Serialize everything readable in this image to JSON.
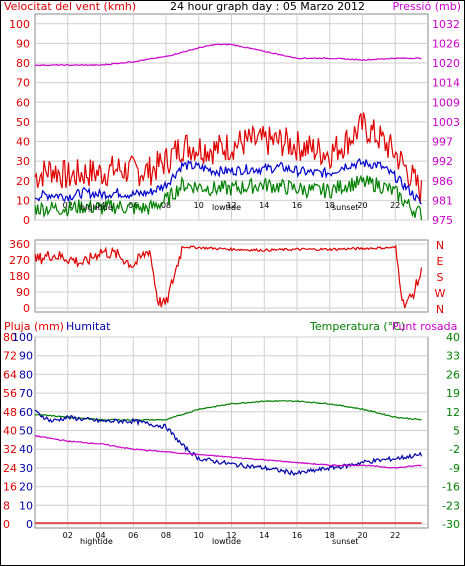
{
  "chart_data": [
    {
      "type": "line",
      "title": "24 hour graph day : 05 Marzo 2012",
      "left_axis_label": "Velocitat del vent (kmh)",
      "right_axis_label": "Pressió (mb)",
      "left_ticks": [
        "0",
        "10",
        "20",
        "30",
        "40",
        "50",
        "60",
        "70",
        "80",
        "90",
        "100"
      ],
      "right_ticks": [
        "975",
        "981",
        "986",
        "992",
        "997",
        "1003",
        "1009",
        "1014",
        "1020",
        "1026",
        "1032"
      ],
      "x_ticks": [
        "02",
        "04",
        "06",
        "08",
        "10",
        "12",
        "14",
        "16",
        "18",
        "20",
        "22"
      ],
      "x_markers": [
        "hightide",
        "lowtide",
        "sunset"
      ],
      "ylim": [
        0,
        105
      ],
      "xlim": [
        0,
        24
      ],
      "grid": true,
      "series": [
        {
          "key": "gust",
          "color": "#e00000",
          "x": [
            0,
            1,
            2,
            3,
            4,
            5,
            6,
            7,
            8,
            9,
            10,
            11,
            12,
            13,
            14,
            15,
            16,
            17,
            18,
            19,
            20,
            21,
            22,
            23,
            23.6
          ],
          "values": [
            22,
            26,
            22,
            24,
            24,
            26,
            25,
            25,
            30,
            38,
            37,
            36,
            38,
            40,
            40,
            40,
            38,
            36,
            34,
            40,
            48,
            42,
            34,
            22,
            14
          ]
        },
        {
          "key": "wind",
          "color": "#0000cc",
          "x": [
            0,
            1,
            2,
            3,
            4,
            5,
            6,
            7,
            8,
            9,
            10,
            11,
            12,
            13,
            14,
            15,
            16,
            17,
            18,
            19,
            20,
            21,
            22,
            23,
            23.6
          ],
          "values": [
            12,
            13,
            12,
            14,
            13,
            14,
            13,
            14,
            18,
            28,
            27,
            25,
            25,
            26,
            26,
            27,
            25,
            24,
            24,
            28,
            29,
            28,
            22,
            14,
            8
          ]
        },
        {
          "key": "wind_min",
          "color": "#008000",
          "x": [
            0,
            1,
            2,
            3,
            4,
            5,
            6,
            7,
            8,
            9,
            10,
            11,
            12,
            13,
            14,
            15,
            16,
            17,
            18,
            19,
            20,
            21,
            22,
            23,
            23.6
          ],
          "values": [
            6,
            6,
            6,
            7,
            6,
            7,
            6,
            6,
            10,
            18,
            17,
            16,
            16,
            17,
            18,
            17,
            16,
            15,
            15,
            18,
            19,
            18,
            14,
            6,
            3
          ]
        },
        {
          "key": "pressure",
          "color": "#cc00cc",
          "unit": "mb",
          "x": [
            0,
            2,
            4,
            6,
            8,
            10,
            11,
            12,
            14,
            16,
            18,
            20,
            22,
            23,
            23.6
          ],
          "values": [
            1020,
            1020,
            1020,
            1021,
            1022.5,
            1025,
            1026,
            1026,
            1024,
            1022,
            1022,
            1021.5,
            1022,
            1022,
            1022
          ]
        }
      ]
    },
    {
      "type": "line",
      "title": "",
      "left_ticks": [
        "0",
        "90",
        "180",
        "270",
        "360"
      ],
      "compass": [
        "N",
        "W",
        "S",
        "E",
        "N"
      ],
      "ylim": [
        0,
        360
      ],
      "xlim": [
        0,
        24
      ],
      "series": [
        {
          "key": "direction",
          "color": "#e00000",
          "x": [
            0,
            1,
            2,
            3,
            4,
            5,
            6,
            7,
            7.5,
            8,
            9,
            10,
            12,
            14,
            16,
            18,
            20,
            22,
            22.5,
            23,
            23.6
          ],
          "values": [
            270,
            300,
            280,
            250,
            320,
            300,
            240,
            330,
            40,
            20,
            345,
            340,
            330,
            325,
            330,
            330,
            335,
            340,
            20,
            60,
            200
          ]
        }
      ]
    },
    {
      "type": "line",
      "left_axis_label": "Pluja (mm)",
      "humidity_label": "Humitat",
      "right_axis_label": "Temperatura (°C)",
      "dewpoint_label": "Punt rosada",
      "rain_ticks": [
        "0",
        "8",
        "16",
        "24",
        "32",
        "40",
        "48",
        "56",
        "64",
        "72",
        "80"
      ],
      "humidity_ticks": [
        "0",
        "10",
        "20",
        "30",
        "40",
        "50",
        "60",
        "70",
        "80",
        "90",
        "100"
      ],
      "temp_ticks": [
        "-30",
        "-23",
        "-16",
        "-9",
        "-2",
        "5",
        "12",
        "19",
        "26",
        "33",
        "40"
      ],
      "right_tick_labels": [
        "-30",
        "-23",
        "-16",
        "-9",
        "-2",
        "5",
        "12",
        "19",
        "26",
        "33",
        "40"
      ],
      "x_ticks": [
        "02",
        "04",
        "06",
        "08",
        "10",
        "12",
        "14",
        "16",
        "18",
        "20",
        "22"
      ],
      "x_markers": [
        "hightide",
        "lowtide",
        "sunset"
      ],
      "xlim": [
        0,
        24
      ],
      "series": [
        {
          "key": "temperature",
          "color": "#008000",
          "unit": "°C",
          "x": [
            0,
            2,
            4,
            6,
            8,
            9,
            10,
            12,
            14,
            16,
            18,
            20,
            22,
            23.6
          ],
          "values": [
            11,
            10,
            9,
            9,
            9,
            11,
            13,
            15,
            16,
            16,
            15,
            13,
            10,
            9
          ]
        },
        {
          "key": "humidity",
          "color": "#0000aa",
          "unit": "%",
          "x": [
            0,
            1,
            2,
            4,
            6,
            8,
            9,
            10,
            12,
            14,
            16,
            18,
            19,
            20,
            22,
            23.6
          ],
          "values": [
            60,
            55,
            57,
            55,
            55,
            52,
            42,
            35,
            32,
            30,
            27,
            30,
            31,
            33,
            35,
            37
          ]
        },
        {
          "key": "dewpoint",
          "color": "#cc00cc",
          "unit": "°C",
          "x": [
            0,
            2,
            4,
            6,
            8,
            10,
            12,
            14,
            16,
            18,
            20,
            22,
            23.6
          ],
          "values": [
            3,
            1,
            0,
            -2,
            -3,
            -4,
            -5,
            -6,
            -7,
            -8,
            -8,
            -9,
            -8
          ]
        },
        {
          "key": "rain",
          "color": "#e00000",
          "unit": "mm",
          "x": [
            0,
            23.6
          ],
          "values": [
            0,
            0
          ]
        }
      ]
    }
  ]
}
